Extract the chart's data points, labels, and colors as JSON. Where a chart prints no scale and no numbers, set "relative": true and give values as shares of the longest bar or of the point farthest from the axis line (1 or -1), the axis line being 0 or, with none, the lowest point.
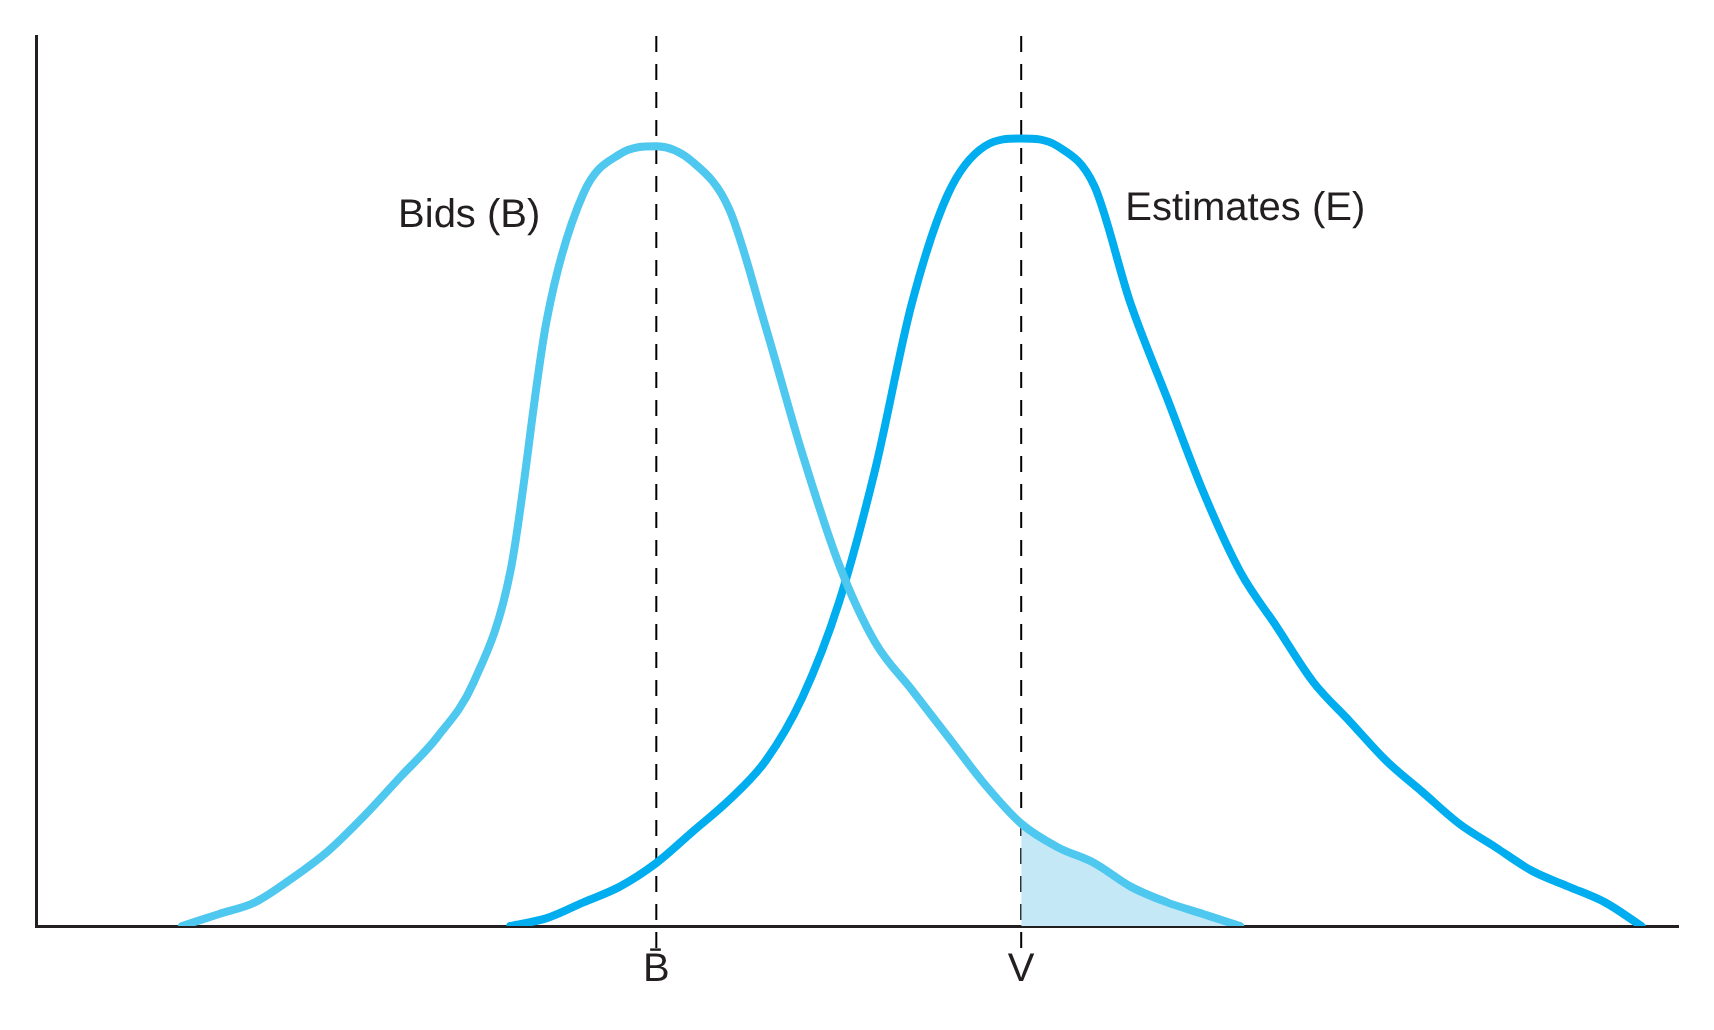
{
  "chart_data": {
    "type": "line",
    "relative": true,
    "categories": [
      null,
      null,
      null,
      null,
      null,
      null,
      null,
      null,
      null,
      null,
      null,
      null,
      null,
      null,
      null,
      null,
      null,
      "B̄",
      null,
      null,
      null,
      null,
      null,
      null,
      null,
      null,
      null,
      "V",
      null,
      null,
      null,
      null,
      null,
      null,
      null,
      null,
      null,
      null,
      null,
      null,
      null,
      null,
      null,
      null,
      null,
      null
    ],
    "tick_labels": "x",
    "grid": false,
    "legend": false,
    "marker": "none",
    "series": [
      {
        "name": "Bids (B)",
        "color": "#4fc8ef",
        "values": [
          null,
          null,
          null,
          null,
          0,
          0.015,
          0.03,
          0.06,
          0.095,
          0.14,
          0.19,
          0.24,
          0.31,
          0.45,
          0.77,
          0.93,
          0.98,
          0.99,
          0.97,
          0.91,
          0.76,
          0.6,
          0.46,
          0.36,
          0.3,
          0.24,
          0.18,
          0.13,
          0.1,
          0.08,
          0.05,
          0.03,
          0.015,
          0,
          null,
          null,
          null,
          null,
          null,
          null,
          null,
          null,
          null,
          null,
          null,
          null
        ]
      },
      {
        "name": "Estimates (E)",
        "color": "#00aeef",
        "values": [
          null,
          null,
          null,
          null,
          null,
          null,
          null,
          null,
          null,
          null,
          null,
          null,
          null,
          0,
          0.01,
          0.03,
          0.05,
          0.08,
          0.12,
          0.16,
          0.21,
          0.29,
          0.41,
          0.58,
          0.79,
          0.93,
          0.99,
          1,
          0.99,
          0.94,
          0.79,
          0.67,
          0.55,
          0.45,
          0.38,
          0.31,
          0.26,
          0.21,
          0.17,
          0.13,
          0.1,
          0.07,
          0.05,
          0.03,
          0,
          null
        ]
      },
      {
        "type": "area",
        "color": "#c5e8f7",
        "values": [
          null,
          null,
          null,
          null,
          null,
          null,
          null,
          null,
          null,
          null,
          null,
          null,
          null,
          null,
          null,
          null,
          null,
          null,
          null,
          null,
          null,
          null,
          null,
          null,
          null,
          null,
          null,
          0.13,
          0.1,
          0.08,
          0.05,
          0.03,
          0.015,
          0,
          null,
          null,
          null,
          null,
          null,
          null,
          null,
          null,
          null,
          null,
          null,
          null
        ]
      }
    ],
    "ref_lines": [
      {
        "axis": "x",
        "value": "B̄",
        "color": "#000000",
        "line_style": "dashed"
      },
      {
        "axis": "x",
        "value": "V",
        "color": "#000000",
        "line_style": "dashed"
      }
    ]
  }
}
